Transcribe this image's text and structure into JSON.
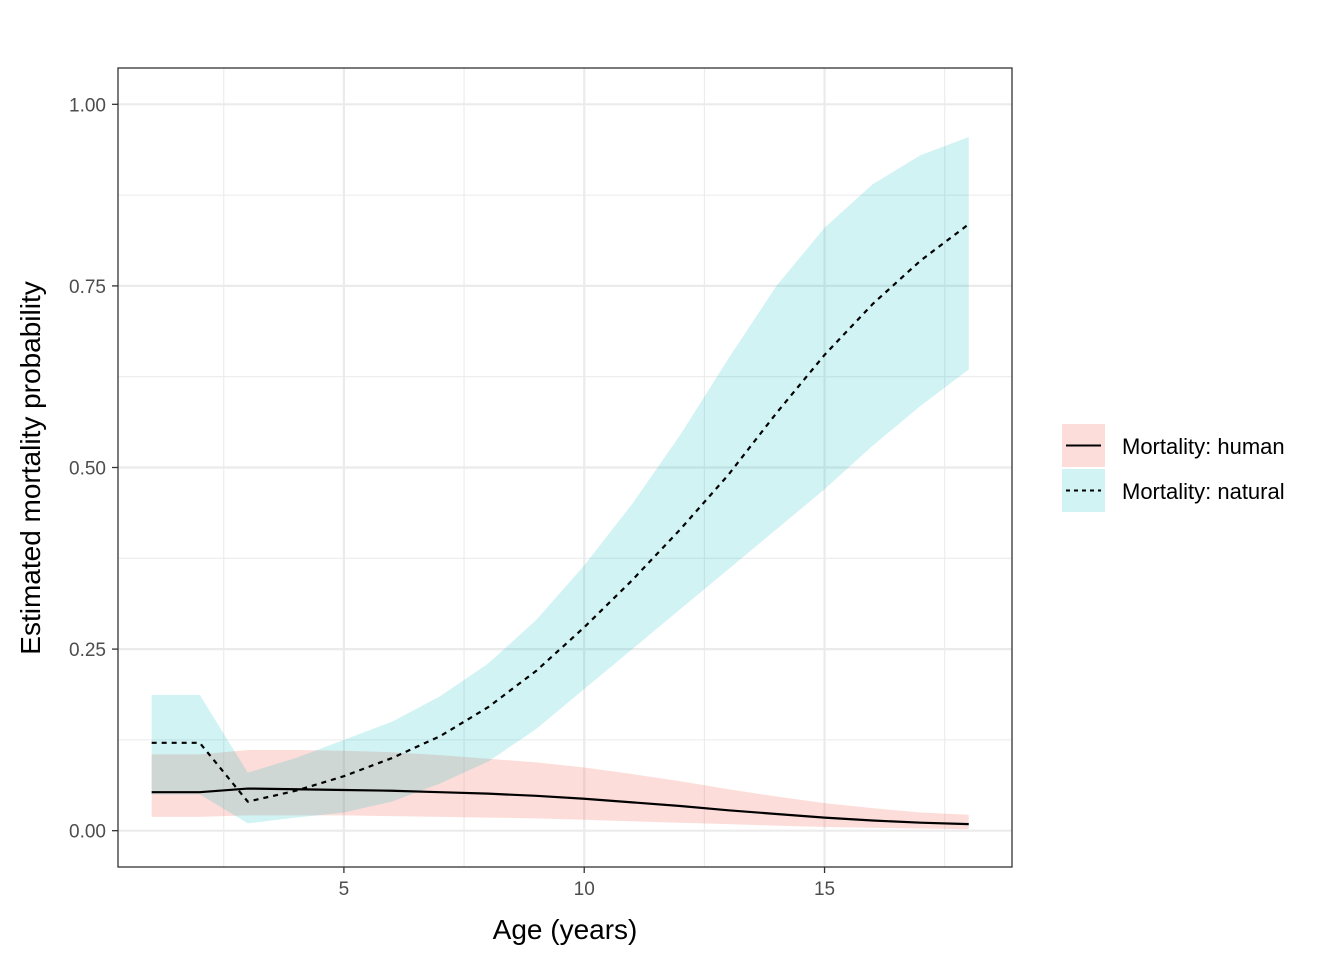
{
  "chart_data": {
    "type": "line",
    "xlabel": "Age (years)",
    "ylabel": "Estimated mortality probability",
    "xlim": [
      0.3,
      18.9
    ],
    "ylim": [
      -0.05,
      1.05
    ],
    "x_ticks": [
      5,
      10,
      15
    ],
    "x_tick_labels": [
      "5",
      "10",
      "15"
    ],
    "y_ticks": [
      0,
      0.25,
      0.5,
      0.75,
      1.0
    ],
    "y_tick_labels": [
      "0.00",
      "0.25",
      "0.50",
      "0.75",
      "1.00"
    ],
    "grid": true,
    "legend_position": "right",
    "x": [
      1,
      2,
      3,
      4,
      5,
      6,
      7,
      8,
      9,
      10,
      11,
      12,
      13,
      14,
      15,
      16,
      17,
      18
    ],
    "series": [
      {
        "name": "Mortality: human",
        "line_style": "solid",
        "fill_color": "#f8766d",
        "values": [
          0.053,
          0.053,
          0.058,
          0.057,
          0.056,
          0.055,
          0.053,
          0.051,
          0.048,
          0.044,
          0.039,
          0.034,
          0.028,
          0.023,
          0.018,
          0.014,
          0.011,
          0.009
        ],
        "lower": [
          0.019,
          0.019,
          0.021,
          0.021,
          0.021,
          0.02,
          0.019,
          0.018,
          0.017,
          0.015,
          0.013,
          0.011,
          0.009,
          0.007,
          0.005,
          0.004,
          0.003,
          0.002
        ],
        "upper": [
          0.105,
          0.105,
          0.111,
          0.111,
          0.11,
          0.108,
          0.104,
          0.099,
          0.094,
          0.087,
          0.078,
          0.068,
          0.057,
          0.047,
          0.038,
          0.031,
          0.025,
          0.022
        ]
      },
      {
        "name": "Mortality: natural",
        "line_style": "dashed",
        "fill_color": "#00bfc4",
        "values": [
          0.121,
          0.121,
          0.04,
          0.055,
          0.075,
          0.1,
          0.13,
          0.17,
          0.22,
          0.28,
          0.345,
          0.415,
          0.49,
          0.575,
          0.655,
          0.725,
          0.785,
          0.835
        ],
        "lower": [
          0.05,
          0.05,
          0.01,
          0.018,
          0.025,
          0.04,
          0.065,
          0.095,
          0.14,
          0.195,
          0.25,
          0.305,
          0.36,
          0.415,
          0.47,
          0.53,
          0.585,
          0.635
        ],
        "upper": [
          0.187,
          0.187,
          0.08,
          0.1,
          0.125,
          0.15,
          0.185,
          0.23,
          0.29,
          0.365,
          0.45,
          0.545,
          0.65,
          0.75,
          0.83,
          0.89,
          0.93,
          0.955
        ]
      }
    ]
  }
}
